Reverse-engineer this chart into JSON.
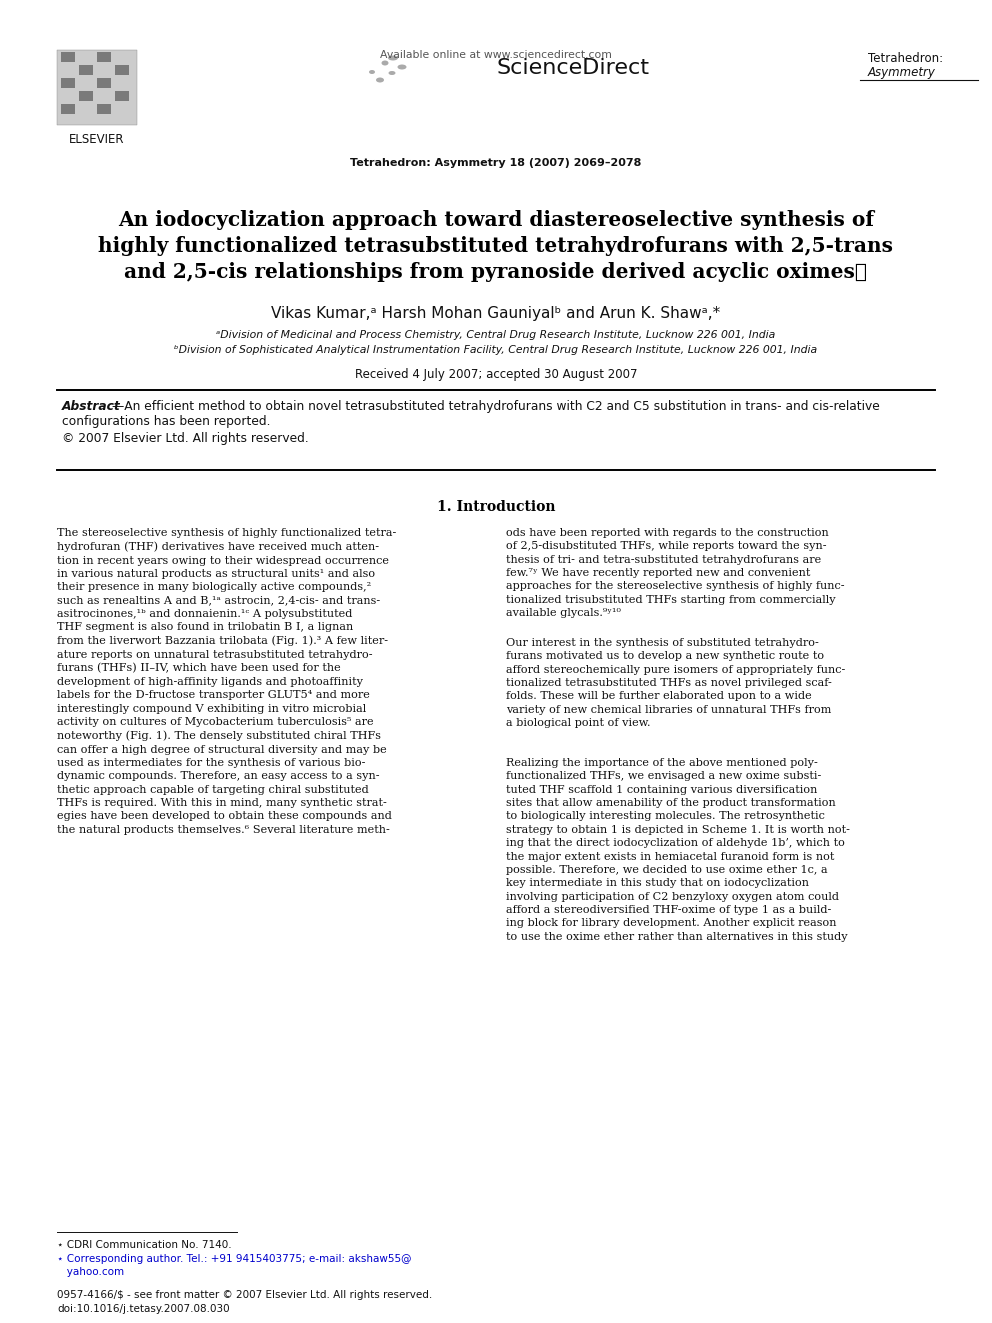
{
  "page_bg": "#ffffff",
  "available_online": "Available online at www.sciencedirect.com",
  "sciencedirect_text": "ScienceDirect",
  "journal_tr1": "Tetrahedron:",
  "journal_tr2": "Asymmetry",
  "journal_ref": "Tetrahedron: Asymmetry 18 (2007) 2069–2078",
  "elsevier_text": "ELSEVIER",
  "title_l1": "An iodocyclization approach toward diastereoselective synthesis of",
  "title_l2_normal": "highly functionalized tetrasubstituted tetrahydrofurans with 2,5-",
  "title_l2_italic": "trans",
  "title_l3_pre": "and 2,5-",
  "title_l3_italic": "cis",
  "title_l3_post": " relationships from pyranoside derived acyclic oximes",
  "title_star": "⋆",
  "authors": "Vikas Kumar,ᵃ Harsh Mohan Gauniyalᵇ and Arun K. Shawᵃ,*",
  "affil_a": "ᵃDivision of Medicinal and Process Chemistry, Central Drug Research Institute, Lucknow 226 001, India",
  "affil_b": "ᵇDivision of Sophisticated Analytical Instrumentation Facility, Central Drug Research Institute, Lucknow 226 001, India",
  "received": "Received 4 July 2007; accepted 30 August 2007",
  "abstract_bold": "Abstract",
  "abstract_rest_l1": "—An efficient method to obtain novel tetrasubstituted tetrahydrofurans with C2 and C5 substitution in trans- and cis-relative",
  "abstract_rest_l2": "configurations has been reported.",
  "abstract_copy": "© 2007 Elsevier Ltd. All rights reserved.",
  "section1": "1. Introduction",
  "col1": "The stereoselective synthesis of highly functionalized tetra-\nhydrofuran (THF) derivatives have received much atten-\ntion in recent years owing to their widespread occurrence\nin various natural products as structural units¹ and also\ntheir presence in many biologically active compounds,²\nsuch as renealtins A and B,¹ᵃ astrocin, 2,4-cis- and trans-\nasitrocinones,¹ᵇ and donnaienin.¹ᶜ A polysubstituted\nTHF segment is also found in trilobatin B I, a lignan\nfrom the liverwort Bazzania trilobata (Fig. 1).³ A few liter-\nature reports on unnatural tetrasubstituted tetrahydro-\nfurans (THFs) II–IV, which have been used for the\ndevelopment of high-affinity ligands and photoaffinity\nlabels for the D-fructose transporter GLUT5⁴ and more\ninterestingly compound V exhibiting in vitro microbial\nactivity on cultures of Mycobacterium tuberculosis⁵ are\nnoteworthy (Fig. 1). The densely substituted chiral THFs\ncan offer a high degree of structural diversity and may be\nused as intermediates for the synthesis of various bio-\ndynamic compounds. Therefore, an easy access to a syn-\nthetic approach capable of targeting chiral substituted\nTHFs is required. With this in mind, many synthetic strat-\negies have been developed to obtain these compounds and\nthe natural products themselves.⁶ Several literature meth-",
  "col2a": "ods have been reported with regards to the construction\nof 2,5-disubstituted THFs, while reports toward the syn-\nthesis of tri- and tetra-substituted tetrahydrofurans are\nfew.⁷ʸ We have recently reported new and convenient\napproaches for the stereoselective synthesis of highly func-\ntionalized trisubstituted THFs starting from commercially\navailable glycals.⁹ʸ¹⁰",
  "col2b": "Our interest in the synthesis of substituted tetrahydro-\nfurans motivated us to develop a new synthetic route to\nafford stereochemically pure isomers of appropriately func-\ntionalized tetrasubstituted THFs as novel privileged scaf-\nfolds. These will be further elaborated upon to a wide\nvariety of new chemical libraries of unnatural THFs from\na biological point of view.",
  "col2c": "Realizing the importance of the above mentioned poly-\nfunctionalized THFs, we envisaged a new oxime substi-\ntuted THF scaffold 1 containing various diversification\nsites that allow amenability of the product transformation\nto biologically interesting molecules. The retrosynthetic\nstrategy to obtain 1 is depicted in Scheme 1. It is worth not-\ning that the direct iodocyclization of aldehyde 1b’, which to\nthe major extent exists in hemiacetal furanoid form is not\npossible. Therefore, we decided to use oxime ether 1c, a\nkey intermediate in this study that on iodocyclization\ninvolving participation of C2 benzyloxy oxygen atom could\nafford a stereodiversified THF-oxime of type 1 as a build-\ning block for library development. Another explicit reason\nto use the oxime ether rather than alternatives in this study",
  "fn1": "⋆ CDRI Communication No. 7140.",
  "fn2_blue": "⋆ Corresponding author. Tel.: +91 9415403775; e-mail: akshaw55@",
  "fn2b_blue": "   yahoo.com",
  "footer1": "0957-4166/$ - see front matter © 2007 Elsevier Ltd. All rights reserved.",
  "footer2": "doi:10.1016/j.tetasy.2007.08.030"
}
